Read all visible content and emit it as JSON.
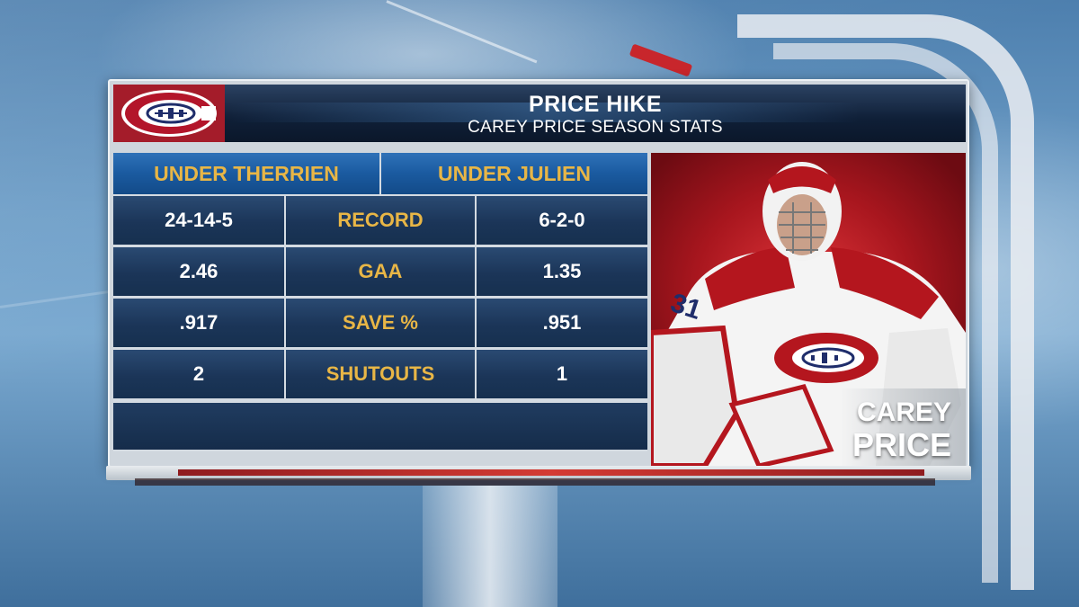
{
  "header": {
    "title": "PRICE HIKE",
    "subtitle": "CAREY PRICE SEASON STATS"
  },
  "columns": {
    "left": "UNDER THERRIEN",
    "right": "UNDER JULIEN"
  },
  "rows": [
    {
      "left": "24-14-5",
      "label": "RECORD",
      "right": "6-2-0"
    },
    {
      "left": "2.46",
      "label": "GAA",
      "right": "1.35"
    },
    {
      "left": ".917",
      "label": "SAVE %",
      "right": ".951"
    },
    {
      "left": "2",
      "label": "SHUTOUTS",
      "right": "1"
    }
  ],
  "player": {
    "first_name": "CAREY",
    "last_name": "PRICE",
    "number": "31"
  },
  "logo": {
    "letters": "CH",
    "icon": "montreal-canadiens-logo"
  },
  "colors": {
    "navy": "#16304f",
    "gold": "#e8b646",
    "red": "#c8262c",
    "blue": "#1a5aa0"
  }
}
